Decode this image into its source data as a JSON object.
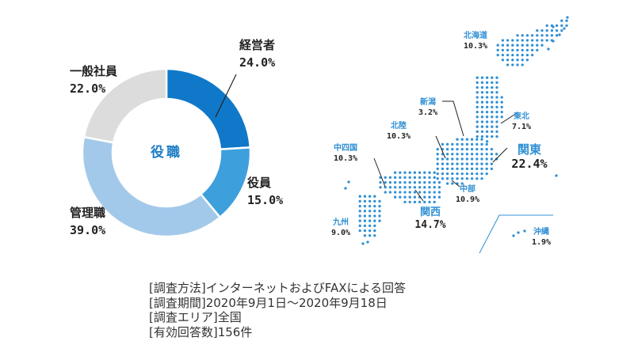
{
  "chart_data": [
    {
      "type": "pie",
      "variant": "donut",
      "title": "役職",
      "slices": [
        {
          "label": "経営者",
          "value": 24.0,
          "value_label": "24.0%",
          "color": "#1078c8"
        },
        {
          "label": "役員",
          "value": 15.0,
          "value_label": "15.0%",
          "color": "#3d9fdc"
        },
        {
          "label": "管理職",
          "value": 39.0,
          "value_label": "39.0%",
          "color": "#a3c9ea"
        },
        {
          "label": "一般社員",
          "value": 22.0,
          "value_label": "22.0%",
          "color": "#dcdcdc"
        }
      ],
      "title_color": "#1a7cc4"
    },
    {
      "type": "map",
      "regions": [
        {
          "name": "北海道",
          "value": 10.3,
          "value_label": "10.3%",
          "emphasis": false
        },
        {
          "name": "東北",
          "value": 7.1,
          "value_label": "7.1%",
          "emphasis": false
        },
        {
          "name": "関東",
          "value": 22.4,
          "value_label": "22.4%",
          "emphasis": true
        },
        {
          "name": "新潟",
          "value": 3.2,
          "value_label": "3.2%",
          "emphasis": false
        },
        {
          "name": "北陸",
          "value": 10.3,
          "value_label": "10.3%",
          "emphasis": false
        },
        {
          "name": "中部",
          "value": 10.9,
          "value_label": "10.9%",
          "emphasis": false
        },
        {
          "name": "関西",
          "value": 14.7,
          "value_label": "14.7%",
          "emphasis": true
        },
        {
          "name": "中四国",
          "value": 10.3,
          "value_label": "10.3%",
          "emphasis": false
        },
        {
          "name": "九州",
          "value": 9.0,
          "value_label": "9.0%",
          "emphasis": false
        },
        {
          "name": "沖縄",
          "value": 1.9,
          "value_label": "1.9%",
          "emphasis": false
        }
      ],
      "dot_color": "#2f8fd4",
      "region_label_color": "#2f8fd4"
    }
  ],
  "notes": [
    "[調査方法]インターネットおよびFAXによる回答",
    "[調査期間]2020年9月1日～2020年9月18日",
    "[調査エリア]全国",
    "[有効回答数]156件"
  ]
}
